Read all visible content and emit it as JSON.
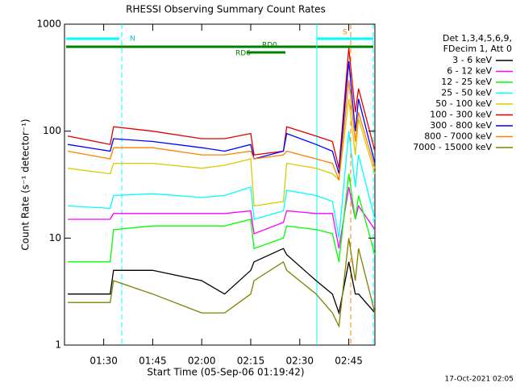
{
  "chart_data": {
    "type": "line",
    "title": "RHESSI Observing Summary Count Rates",
    "x_label": "Start Time (05-Sep-06 01:19:42)",
    "y_label": "Count Rate (s⁻¹ detector⁻¹)",
    "legend_header": [
      "Det 1,3,4,5,6,9,",
      "FDecim 1, Att 0"
    ],
    "annotations": [
      "N",
      "S",
      "RD0",
      "RD6"
    ],
    "footer": "17-Oct-2021 02:05",
    "log_y": true,
    "xlim": [
      "01:18",
      "02:53"
    ],
    "xticks": [
      "01:30",
      "01:45",
      "02:00",
      "02:15",
      "02:30",
      "02:45"
    ],
    "ylim": [
      1,
      1000
    ],
    "yticks": [
      1,
      10,
      100,
      1000
    ],
    "x": [
      "01:19",
      "01:32",
      "01:33",
      "01:45",
      "02:00",
      "02:07",
      "02:15",
      "02:16",
      "02:25",
      "02:26",
      "02:35",
      "02:40",
      "02:42",
      "02:45",
      "02:47",
      "02:48",
      "02:53"
    ],
    "series": [
      {
        "name": "3 - 6 keV",
        "color": "#000000",
        "values": [
          3,
          3,
          5,
          5,
          4,
          3,
          5,
          6,
          8,
          7,
          4,
          3,
          2,
          6,
          3,
          3,
          2
        ]
      },
      {
        "name": "6 - 12 keV",
        "color": "#ff00ff",
        "values": [
          15,
          15,
          17,
          17,
          17,
          17,
          18,
          11,
          14,
          18,
          17,
          17,
          8,
          30,
          15,
          20,
          12
        ]
      },
      {
        "name": "12 - 25 keV",
        "color": "#00ff00",
        "values": [
          6,
          6,
          12,
          13,
          13,
          13,
          15,
          8,
          10,
          13,
          12,
          11,
          6,
          40,
          15,
          25,
          7
        ]
      },
      {
        "name": "25 - 50 keV",
        "color": "#00ffff",
        "values": [
          20,
          19,
          25,
          26,
          24,
          25,
          30,
          15,
          18,
          28,
          25,
          22,
          10,
          100,
          30,
          60,
          15
        ]
      },
      {
        "name": "50 - 100 keV",
        "color": "#d8cc00",
        "values": [
          45,
          40,
          50,
          50,
          45,
          48,
          55,
          20,
          22,
          50,
          45,
          40,
          35,
          200,
          60,
          130,
          40
        ]
      },
      {
        "name": "100 - 300 keV",
        "color": "#e00000",
        "values": [
          90,
          75,
          110,
          100,
          85,
          85,
          95,
          60,
          65,
          110,
          90,
          80,
          45,
          600,
          150,
          250,
          65
        ]
      },
      {
        "name": "300 - 800 keV",
        "color": "#0000ff",
        "values": [
          75,
          65,
          85,
          80,
          70,
          65,
          75,
          55,
          65,
          95,
          75,
          65,
          40,
          450,
          100,
          200,
          50
        ]
      },
      {
        "name": "800 - 7000 keV",
        "color": "#ff8000",
        "values": [
          65,
          55,
          70,
          70,
          60,
          60,
          65,
          55,
          60,
          65,
          55,
          50,
          35,
          300,
          80,
          150,
          45
        ]
      },
      {
        "name": "7000 - 15000 keV",
        "color": "#808000",
        "values": [
          2.5,
          2.5,
          4,
          3,
          2,
          2,
          3,
          4,
          6,
          5,
          3,
          2,
          1.5,
          10,
          4,
          8,
          2
        ]
      }
    ]
  }
}
